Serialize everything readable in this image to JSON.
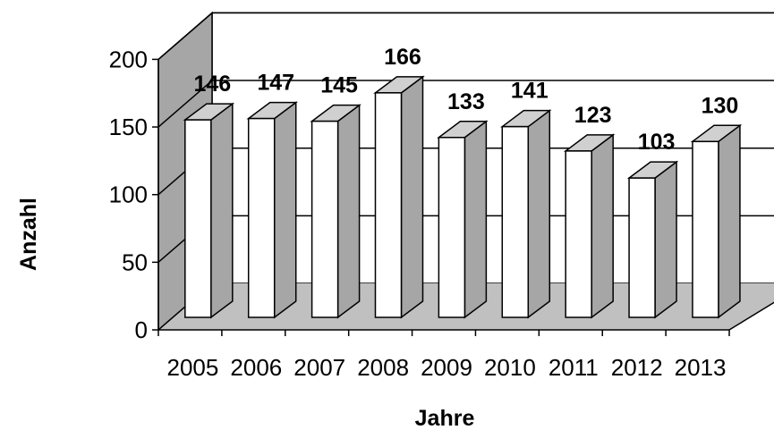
{
  "chart_data": {
    "type": "bar",
    "categories": [
      "2005",
      "2006",
      "2007",
      "2008",
      "2009",
      "2010",
      "2011",
      "2012",
      "2013"
    ],
    "values": [
      146,
      147,
      145,
      166,
      133,
      141,
      123,
      103,
      130
    ],
    "data_labels": [
      "146",
      "147",
      "145",
      "166",
      "133",
      "141",
      "123",
      "103",
      "130"
    ],
    "title": "",
    "xlabel": "Jahre",
    "ylabel": "Anzahl",
    "ylim": [
      0,
      200
    ],
    "yticks": [
      "0",
      "50",
      "100",
      "150",
      "200"
    ],
    "grid": true,
    "style": "3d-column",
    "colors": {
      "bar_front": "#ffffff",
      "bar_side": "#a6a6a6",
      "bar_top": "#d0d0d0",
      "back_wall": "#ffffff",
      "side_wall": "#a6a6a6",
      "floor": "#c0c0c0",
      "outline": "#000000"
    }
  }
}
